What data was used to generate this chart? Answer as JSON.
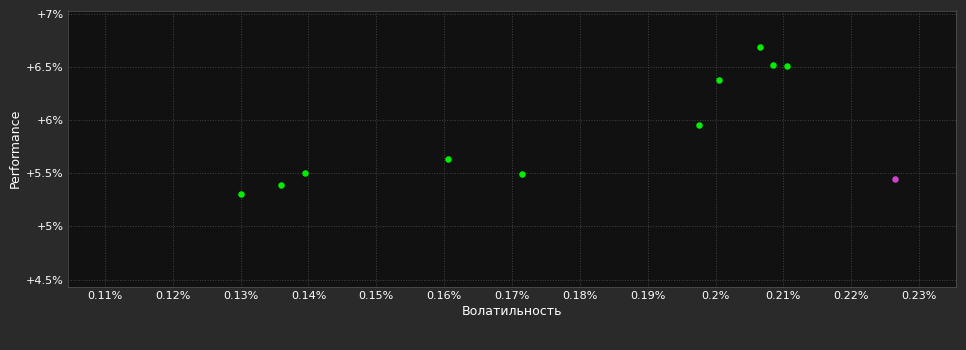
{
  "background_color": "#2a2a2a",
  "plot_bg_color": "#111111",
  "grid_color": "#444444",
  "text_color": "#ffffff",
  "xlabel": "Волатильность",
  "ylabel": "Performance",
  "xticks": [
    0.0011,
    0.0012,
    0.0013,
    0.0014,
    0.0015,
    0.0016,
    0.0017,
    0.0018,
    0.0019,
    0.002,
    0.0021,
    0.0022,
    0.0023
  ],
  "xtick_labels": [
    "0.11%",
    "0.12%",
    "0.13%",
    "0.14%",
    "0.15%",
    "0.16%",
    "0.17%",
    "0.18%",
    "0.19%",
    "0.2%",
    "0.21%",
    "0.22%",
    "0.23%"
  ],
  "yticks": [
    0.045,
    0.05,
    0.055,
    0.06,
    0.065,
    0.07
  ],
  "ytick_labels": [
    "+4.5%",
    "+5%",
    "+5.5%",
    "+6%",
    "+6.5%",
    "+7%"
  ],
  "green_points_x": [
    0.0013,
    0.00136,
    0.001395,
    0.001605,
    0.001715,
    0.001975,
    0.002005,
    0.002065,
    0.002085,
    0.002105
  ],
  "green_points_y": [
    0.05305,
    0.05385,
    0.05505,
    0.05635,
    0.05495,
    0.05955,
    0.06375,
    0.06685,
    0.06515,
    0.06505
  ],
  "green_color": "#00ee00",
  "purple_point_x": [
    0.002265
  ],
  "purple_point_y": [
    0.05445
  ],
  "purple_color": "#cc44cc",
  "marker_size": 22,
  "xlabel_fontsize": 9,
  "ylabel_fontsize": 9,
  "tick_fontsize": 8,
  "xlim_min": 0.001045,
  "xlim_max": 0.002355,
  "ylim_min": 0.0443,
  "ylim_max": 0.0703
}
